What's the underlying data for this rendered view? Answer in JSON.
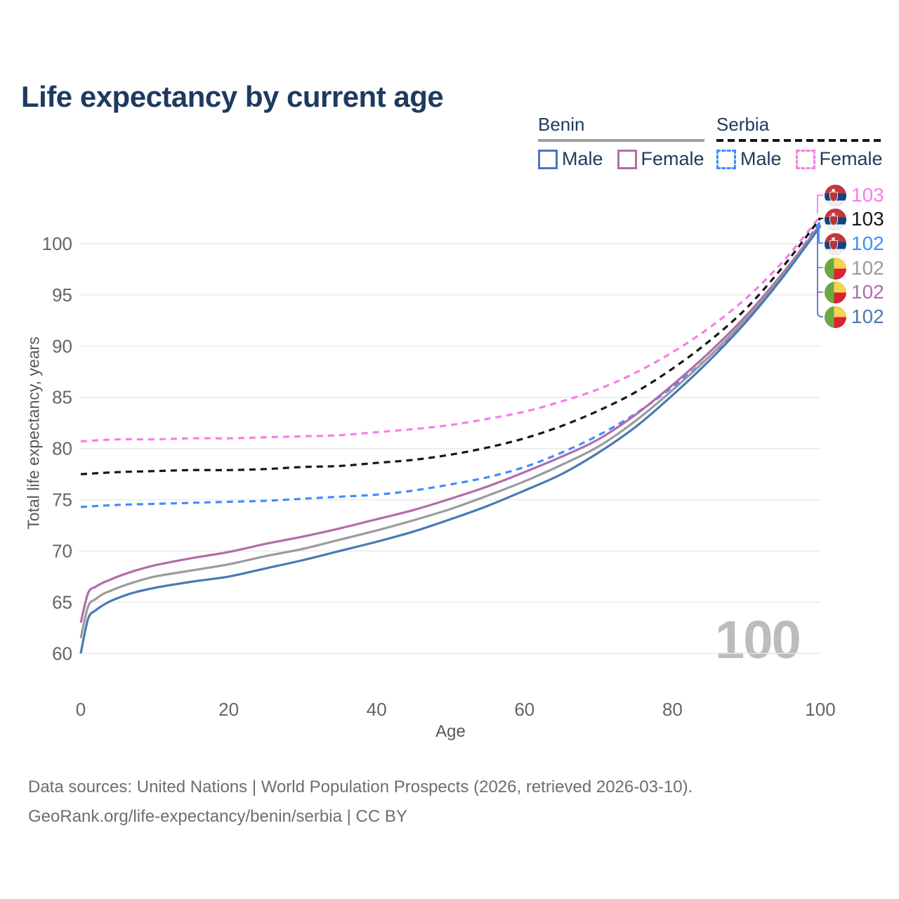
{
  "title": "Life expectancy by current age",
  "watermark_age": "100",
  "y_axis": {
    "title": "Total life expectancy, years",
    "ticks": [
      100,
      95,
      90,
      85,
      80,
      75,
      70,
      65,
      60
    ]
  },
  "x_axis": {
    "title": "Age",
    "ticks": [
      0,
      20,
      40,
      60,
      80,
      100
    ]
  },
  "colors": {
    "benin_male": "#4a78b5",
    "benin_female": "#b06dab",
    "benin_total": "#9b9b9b",
    "serbia_male": "#3f8efc",
    "serbia_female": "#fb7ce8",
    "serbia_total": "#161616",
    "grid": "#e9e9e9",
    "tick_text": "#656565",
    "title_text": "#1e3a5f"
  },
  "legend": {
    "groups": [
      {
        "name": "Benin",
        "underline": "solid",
        "items": [
          {
            "label": "Male",
            "color": "#4a78b5",
            "dash": false
          },
          {
            "label": "Female",
            "color": "#b06dab",
            "dash": false
          }
        ]
      },
      {
        "name": "Serbia",
        "underline": "dashed",
        "items": [
          {
            "label": "Male",
            "color": "#3f8efc",
            "dash": true
          },
          {
            "label": "Female",
            "color": "#fb7ce8",
            "dash": true
          }
        ]
      }
    ]
  },
  "end_labels": [
    {
      "value": "103",
      "color": "#fb7ce8",
      "flag": "serbia",
      "series": "Serbia Female"
    },
    {
      "value": "103",
      "color": "#161616",
      "flag": "serbia",
      "series": "Serbia Total"
    },
    {
      "value": "102",
      "color": "#3f8efc",
      "flag": "serbia",
      "series": "Serbia Male"
    },
    {
      "value": "102",
      "color": "#9b9b9b",
      "flag": "benin",
      "series": "Benin Total"
    },
    {
      "value": "102",
      "color": "#b06dab",
      "flag": "benin",
      "series": "Benin Female"
    },
    {
      "value": "102",
      "color": "#4a78b5",
      "flag": "benin",
      "series": "Benin Male"
    }
  ],
  "footer": {
    "line1": "Data sources: United Nations | World Population Prospects (2026, retrieved 2026-03-10).",
    "line2": "GeoRank.org/life-expectancy/benin/serbia | CC BY"
  },
  "chart_data": {
    "type": "line",
    "title": "Life expectancy by current age",
    "xlabel": "Age",
    "ylabel": "Total life expectancy, years",
    "xlim": [
      0,
      100
    ],
    "ylim": [
      57.5,
      103.5
    ],
    "grid": "horizontal",
    "legend_position": "top-right",
    "series": [
      {
        "name": "Serbia Female",
        "color": "#fb7ce8",
        "dash": true,
        "end_label": 103,
        "x": [
          0,
          5,
          10,
          15,
          20,
          25,
          30,
          35,
          40,
          45,
          50,
          55,
          60,
          65,
          70,
          75,
          80,
          85,
          90,
          95,
          100
        ],
        "y": [
          80.7,
          80.9,
          80.9,
          81.0,
          81.0,
          81.1,
          81.2,
          81.3,
          81.6,
          81.9,
          82.3,
          82.9,
          83.6,
          84.6,
          85.8,
          87.4,
          89.4,
          91.8,
          94.7,
          98.3,
          102.7
        ]
      },
      {
        "name": "Serbia Total",
        "color": "#161616",
        "dash": true,
        "end_label": 103,
        "x": [
          0,
          5,
          10,
          15,
          20,
          25,
          30,
          35,
          40,
          45,
          50,
          55,
          60,
          65,
          70,
          75,
          80,
          85,
          90,
          95,
          100
        ],
        "y": [
          77.5,
          77.7,
          77.8,
          77.9,
          77.9,
          78.0,
          78.2,
          78.3,
          78.6,
          78.9,
          79.4,
          80.1,
          81.0,
          82.2,
          83.7,
          85.5,
          87.8,
          90.5,
          93.7,
          97.8,
          102.5
        ]
      },
      {
        "name": "Serbia Male",
        "color": "#3f8efc",
        "dash": true,
        "end_label": 102,
        "x": [
          0,
          5,
          10,
          15,
          20,
          25,
          30,
          35,
          40,
          45,
          50,
          55,
          60,
          65,
          70,
          75,
          80,
          85,
          90,
          95,
          100
        ],
        "y": [
          74.3,
          74.5,
          74.6,
          74.7,
          74.8,
          74.9,
          75.1,
          75.3,
          75.5,
          75.9,
          76.5,
          77.2,
          78.2,
          79.6,
          81.3,
          83.4,
          86.0,
          89.0,
          92.6,
          97.0,
          102.2
        ]
      },
      {
        "name": "Benin Female",
        "color": "#b06dab",
        "dash": false,
        "end_label": 102,
        "x": [
          0,
          1,
          2,
          3,
          4,
          5,
          7,
          10,
          15,
          20,
          25,
          30,
          35,
          40,
          45,
          50,
          55,
          60,
          65,
          70,
          75,
          80,
          85,
          90,
          95,
          100
        ],
        "y": [
          63.0,
          65.9,
          66.5,
          66.9,
          67.2,
          67.5,
          68.0,
          68.6,
          69.3,
          69.9,
          70.7,
          71.4,
          72.2,
          73.1,
          74.0,
          75.1,
          76.3,
          77.7,
          79.2,
          80.9,
          83.3,
          86.2,
          89.4,
          93.0,
          97.2,
          101.9
        ]
      },
      {
        "name": "Benin Total",
        "color": "#9b9b9b",
        "dash": false,
        "end_label": 102,
        "x": [
          0,
          1,
          2,
          3,
          4,
          5,
          7,
          10,
          15,
          20,
          25,
          30,
          35,
          40,
          45,
          50,
          55,
          60,
          65,
          70,
          75,
          80,
          85,
          90,
          95,
          100
        ],
        "y": [
          61.5,
          64.6,
          65.3,
          65.8,
          66.1,
          66.4,
          66.9,
          67.5,
          68.1,
          68.7,
          69.5,
          70.2,
          71.1,
          72.0,
          73.0,
          74.1,
          75.4,
          76.8,
          78.4,
          80.2,
          82.7,
          85.7,
          89.0,
          92.7,
          97.0,
          101.8
        ]
      },
      {
        "name": "Benin Male",
        "color": "#4a78b5",
        "dash": false,
        "end_label": 102,
        "x": [
          0,
          1,
          2,
          3,
          4,
          5,
          7,
          10,
          15,
          20,
          25,
          30,
          35,
          40,
          45,
          50,
          55,
          60,
          65,
          70,
          75,
          80,
          85,
          90,
          95,
          100
        ],
        "y": [
          60.0,
          63.4,
          64.2,
          64.7,
          65.1,
          65.4,
          65.9,
          66.4,
          67.0,
          67.5,
          68.3,
          69.1,
          70.0,
          70.9,
          71.9,
          73.1,
          74.4,
          75.9,
          77.5,
          79.6,
          82.1,
          85.2,
          88.6,
          92.4,
          96.8,
          101.7
        ]
      }
    ]
  }
}
